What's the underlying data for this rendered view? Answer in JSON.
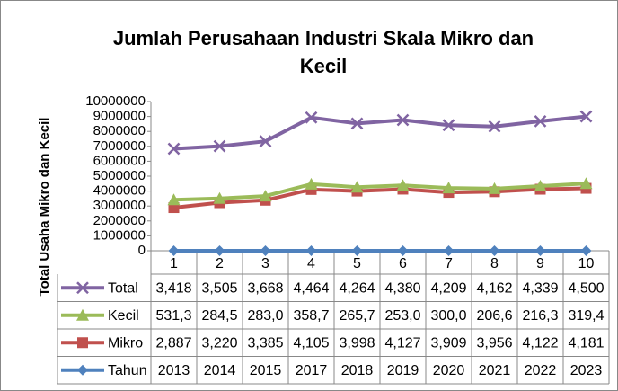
{
  "chart_data": {
    "type": "stacked-line",
    "title": "Jumlah Perusahaan Industri Skala Mikro dan Kecil",
    "ylabel": "Total Usaha Mikro dan Kecil",
    "categories": [
      "1",
      "2",
      "3",
      "4",
      "5",
      "6",
      "7",
      "8",
      "9",
      "10"
    ],
    "ylim": [
      0,
      10000000
    ],
    "yticks": [
      0,
      1000000,
      2000000,
      3000000,
      4000000,
      5000000,
      6000000,
      7000000,
      8000000,
      9000000,
      10000000
    ],
    "grid": false,
    "series": [
      {
        "name": "Tahun",
        "color": "#4f81bd",
        "marker": "diamond",
        "values": [
          2013,
          2014,
          2015,
          2017,
          2018,
          2019,
          2020,
          2021,
          2022,
          2023
        ]
      },
      {
        "name": "Mikro",
        "color": "#c0504d",
        "marker": "square",
        "values": [
          2887000,
          3220000,
          3385000,
          4105000,
          3998000,
          4127000,
          3909000,
          3956000,
          4122000,
          4181000
        ],
        "value_labels": [
          "2,887",
          "3,220",
          "3,385",
          "4,105",
          "3,998",
          "4,127",
          "3,909",
          "3,956",
          "4,122",
          "4,181"
        ]
      },
      {
        "name": "Kecil",
        "color": "#9bbb59",
        "marker": "triangle",
        "values": [
          531300,
          284500,
          283000,
          358700,
          265700,
          253000,
          300000,
          206600,
          216300,
          319400
        ],
        "value_labels": [
          "531,3",
          "284,5",
          "283,0",
          "358,7",
          "265,7",
          "253,0",
          "300,0",
          "206,6",
          "216,3",
          "319,4"
        ]
      },
      {
        "name": "Total",
        "color": "#8064a2",
        "marker": "x",
        "values": [
          3418000,
          3505000,
          3668000,
          4464000,
          4264000,
          4380000,
          4209000,
          4162000,
          4339000,
          4500000
        ],
        "value_labels": [
          "3,418",
          "3,505",
          "3,668",
          "4,464",
          "4,264",
          "4,380",
          "4,209",
          "4,162",
          "4,339",
          "4,500"
        ]
      }
    ]
  }
}
